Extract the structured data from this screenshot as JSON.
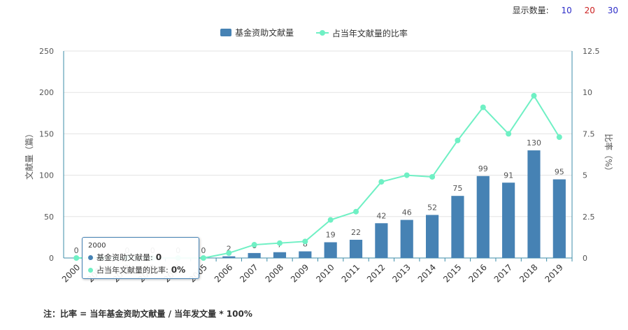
{
  "display_count": {
    "label": "显示数量:",
    "options": [
      {
        "value": "10",
        "color": "#2c2cc8"
      },
      {
        "value": "20",
        "color": "#cc2222"
      },
      {
        "value": "30",
        "color": "#2c2cc8"
      }
    ]
  },
  "chart_data": {
    "type": "bar+line",
    "categories": [
      "2000",
      "2001",
      "2002",
      "2003",
      "2004",
      "2005",
      "2006",
      "2007",
      "2008",
      "2009",
      "2010",
      "2011",
      "2012",
      "2013",
      "2014",
      "2015",
      "2016",
      "2017",
      "2018",
      "2019"
    ],
    "series": [
      {
        "name": "基金资助文献量",
        "type": "bar",
        "axis": "left",
        "color": "#4682b4",
        "values": [
          0,
          0,
          0,
          0,
          0,
          0,
          2,
          6,
          7,
          8,
          19,
          22,
          42,
          46,
          52,
          75,
          99,
          91,
          130,
          95
        ],
        "labels": [
          "0",
          "",
          "0",
          "0",
          "0",
          "0",
          "2",
          "6",
          "7",
          "8",
          "19",
          "22",
          "42",
          "46",
          "52",
          "75",
          "99",
          "91",
          "130",
          "95"
        ]
      },
      {
        "name": "占当年文献量的比率",
        "type": "line",
        "axis": "right",
        "color": "#6ff0c4",
        "values": [
          0,
          0,
          0,
          0,
          0,
          0,
          0.3,
          0.8,
          0.9,
          1.0,
          2.3,
          2.8,
          4.6,
          5.0,
          4.9,
          7.1,
          9.1,
          7.5,
          9.8,
          7.3
        ]
      }
    ],
    "y_left": {
      "label": "文献量（篇）",
      "min": 0,
      "max": 250,
      "ticks": [
        "0",
        "50",
        "100",
        "150",
        "200",
        "250"
      ]
    },
    "y_right": {
      "label": "比率（%）",
      "min": 0,
      "max": 12.5,
      "ticks": [
        "0",
        "2.5",
        "5",
        "7.5",
        "10",
        "12.5"
      ]
    },
    "grid": true,
    "legend_position": "top-center"
  },
  "tooltip": {
    "title": "2000",
    "rows": [
      {
        "label": "基金资助文献量:",
        "value": "0",
        "color": "#4682b4"
      },
      {
        "label": "占当年文献量的比率:",
        "value": "0%",
        "color": "#6ff0c4"
      }
    ]
  },
  "footnote": "注：比率 = 当年基金资助文献量 / 当年发文量 * 100%"
}
